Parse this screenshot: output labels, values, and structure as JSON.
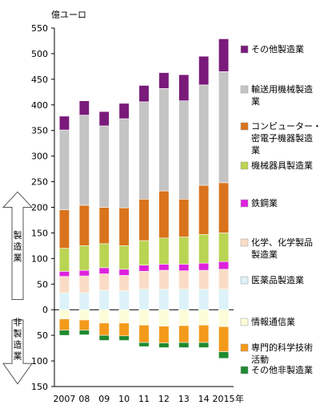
{
  "chart_data": {
    "type": "bar",
    "stacked": true,
    "unit_label": "億ユーロ",
    "x_suffix": "年",
    "categories": [
      "2007",
      "08",
      "09",
      "10",
      "11",
      "12",
      "13",
      "14",
      "2015"
    ],
    "ylim": [
      -150,
      550
    ],
    "ytick_values": [
      -150,
      -100,
      -50,
      0,
      50,
      100,
      150,
      200,
      250,
      300,
      350,
      400,
      450,
      500,
      550
    ],
    "ytick_labels": [
      "150",
      "100",
      "50",
      "0",
      "50",
      "100",
      "150",
      "200",
      "250",
      "300",
      "350",
      "400",
      "450",
      "500",
      "550"
    ],
    "grid": false,
    "legend_position": "right",
    "positive_series": [
      {
        "name": "医薬品製造業",
        "color": "#ddf2f8",
        "values": [
          33,
          33,
          38,
          37,
          40,
          40,
          40,
          40,
          40
        ]
      },
      {
        "name": "化学、化学製品製造業",
        "color": "#fadcc6",
        "values": [
          32,
          33,
          32,
          30,
          35,
          37,
          36,
          37,
          39
        ]
      },
      {
        "name": "鉄鋼業",
        "color": "#dd22dd",
        "values": [
          10,
          11,
          12,
          12,
          12,
          12,
          13,
          14,
          15
        ]
      },
      {
        "name": "機械器具製造業",
        "color": "#bad453",
        "values": [
          45,
          48,
          47,
          46,
          48,
          51,
          53,
          56,
          56
        ]
      },
      {
        "name": "コンピューター・精密電子機器製造業",
        "color": "#d9731c",
        "values": [
          75,
          79,
          71,
          74,
          81,
          92,
          74,
          96,
          98
        ]
      },
      {
        "name": "輸送用機械製造業",
        "color": "#c4c4c4",
        "values": [
          156,
          176,
          159,
          174,
          190,
          200,
          192,
          196,
          217
        ]
      },
      {
        "name": "その他製造業",
        "color": "#7a1a7a",
        "values": [
          27,
          28,
          28,
          30,
          32,
          31,
          51,
          56,
          64
        ]
      }
    ],
    "negative_series": [
      {
        "name": "情報通信業",
        "color": "#fdfcd8",
        "values": [
          18,
          20,
          26,
          26,
          30,
          32,
          31,
          30,
          33
        ]
      },
      {
        "name": "専門的科学技術活動",
        "color": "#f39a1a",
        "values": [
          22,
          20,
          24,
          25,
          34,
          33,
          33,
          34,
          49
        ]
      },
      {
        "name": "その他非製造業",
        "color": "#1f8a30",
        "values": [
          10,
          9,
          10,
          9,
          8,
          9,
          10,
          10,
          13
        ]
      }
    ],
    "legend": [
      {
        "name": "その他製造業",
        "lines": [
          "その他製造業"
        ]
      },
      {
        "name": "輸送用機械製造業",
        "lines": [
          "輸送用機械製造",
          "業"
        ]
      },
      {
        "name": "コンピューター・精密電子機器製造業",
        "lines": [
          "コンピューター・精",
          "密電子機器製造",
          "業"
        ]
      },
      {
        "name": "機械器具製造業",
        "lines": [
          "機械器具製造業"
        ]
      },
      {
        "name": "鉄鋼業",
        "lines": [
          "鉄鋼業"
        ]
      },
      {
        "name": "化学、化学製品製造業",
        "lines": [
          "化学、化学製品",
          "製造業"
        ]
      },
      {
        "name": "医薬品製造業",
        "lines": [
          "医薬品製造業"
        ]
      },
      {
        "name": "情報通信業",
        "lines": [
          "情報通信業"
        ]
      },
      {
        "name": "専門的科学技術活動",
        "lines": [
          "専門的科学技術",
          "活動"
        ]
      },
      {
        "name": "その他非製造業",
        "lines": [
          "その他非製造業"
        ]
      }
    ],
    "side_labels": {
      "manufacturing": [
        "製",
        "造",
        "業"
      ],
      "non_manufacturing": [
        "非",
        "製",
        "造",
        "業"
      ]
    }
  }
}
